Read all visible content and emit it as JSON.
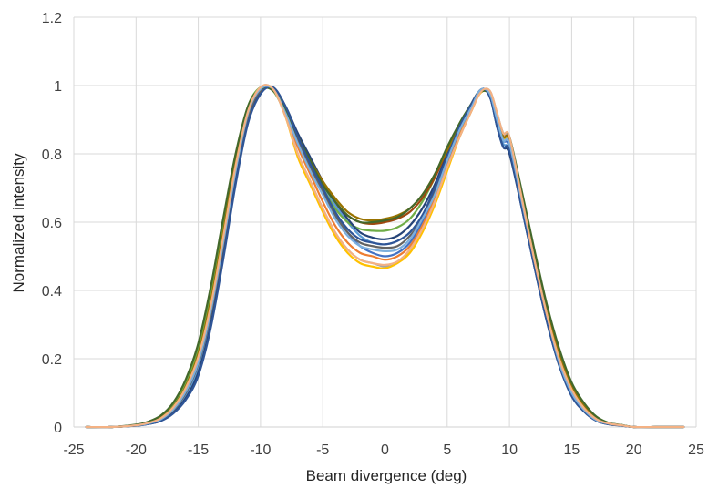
{
  "chart_data": {
    "type": "line",
    "title": "",
    "xlabel": "Beam divergence (deg)",
    "ylabel": "Normalized intensity",
    "xlim": [
      -25,
      25
    ],
    "ylim": [
      0,
      1.2
    ],
    "xticks": [
      -25,
      -20,
      -15,
      -10,
      -5,
      0,
      5,
      10,
      15,
      20,
      25
    ],
    "yticks": [
      0,
      0.2,
      0.4,
      0.6,
      0.8,
      1,
      1.2
    ],
    "ytick_labels": [
      "0",
      "0.2",
      "0.4",
      "0.6",
      "0.8",
      "1",
      "1.2"
    ],
    "grid": true,
    "legend": "none",
    "x": [
      -24,
      -22,
      -20,
      -19,
      -18,
      -17,
      -16,
      -15,
      -14,
      -13,
      -12,
      -11,
      -10,
      -9,
      -8,
      -7,
      -6,
      -5,
      -4,
      -3,
      -2,
      -1,
      0,
      1,
      2,
      3,
      4,
      5,
      6,
      7,
      7.5,
      8,
      8.5,
      9,
      9.5,
      10,
      11,
      12,
      13,
      14,
      15,
      16,
      17,
      18,
      19,
      20,
      22,
      24
    ],
    "series": [
      {
        "color": "#4472c4",
        "values": [
          0.0,
          0.0,
          0.005,
          0.01,
          0.02,
          0.045,
          0.09,
          0.17,
          0.32,
          0.52,
          0.74,
          0.91,
          0.98,
          0.99,
          0.93,
          0.84,
          0.77,
          0.7,
          0.63,
          0.57,
          0.53,
          0.51,
          0.5,
          0.51,
          0.54,
          0.6,
          0.68,
          0.78,
          0.87,
          0.95,
          0.98,
          0.99,
          0.96,
          0.9,
          0.84,
          0.82,
          0.66,
          0.49,
          0.33,
          0.19,
          0.1,
          0.05,
          0.02,
          0.01,
          0.005,
          0.0,
          0.0,
          0.0
        ]
      },
      {
        "color": "#ed7d31",
        "values": [
          0.0,
          0.0,
          0.005,
          0.012,
          0.025,
          0.055,
          0.11,
          0.19,
          0.34,
          0.54,
          0.76,
          0.92,
          0.99,
          0.99,
          0.92,
          0.82,
          0.74,
          0.66,
          0.59,
          0.54,
          0.51,
          0.5,
          0.49,
          0.5,
          0.53,
          0.59,
          0.67,
          0.77,
          0.86,
          0.94,
          0.98,
          0.99,
          0.97,
          0.9,
          0.85,
          0.83,
          0.66,
          0.48,
          0.32,
          0.19,
          0.1,
          0.05,
          0.02,
          0.01,
          0.005,
          0.0,
          0.0,
          0.0
        ]
      },
      {
        "color": "#a5a5a5",
        "values": [
          0.0,
          0.0,
          0.005,
          0.012,
          0.028,
          0.06,
          0.12,
          0.21,
          0.36,
          0.56,
          0.77,
          0.93,
          0.995,
          0.99,
          0.91,
          0.8,
          0.72,
          0.64,
          0.57,
          0.52,
          0.49,
          0.48,
          0.47,
          0.48,
          0.52,
          0.58,
          0.66,
          0.76,
          0.85,
          0.93,
          0.97,
          0.99,
          0.98,
          0.92,
          0.86,
          0.84,
          0.67,
          0.49,
          0.33,
          0.2,
          0.11,
          0.06,
          0.025,
          0.01,
          0.005,
          0.0,
          0.0,
          0.0
        ]
      },
      {
        "color": "#ffc000",
        "values": [
          0.0,
          0.0,
          0.005,
          0.012,
          0.026,
          0.058,
          0.115,
          0.2,
          0.35,
          0.55,
          0.76,
          0.92,
          0.99,
          0.99,
          0.91,
          0.79,
          0.71,
          0.63,
          0.56,
          0.51,
          0.48,
          0.47,
          0.465,
          0.48,
          0.51,
          0.57,
          0.65,
          0.75,
          0.85,
          0.93,
          0.97,
          0.985,
          0.97,
          0.91,
          0.85,
          0.83,
          0.66,
          0.49,
          0.33,
          0.2,
          0.11,
          0.055,
          0.022,
          0.01,
          0.005,
          0.0,
          0.0,
          0.0
        ]
      },
      {
        "color": "#5b9bd5",
        "values": [
          0.0,
          0.0,
          0.004,
          0.01,
          0.02,
          0.048,
          0.095,
          0.175,
          0.32,
          0.52,
          0.74,
          0.91,
          0.985,
          0.99,
          0.93,
          0.84,
          0.77,
          0.71,
          0.65,
          0.6,
          0.56,
          0.54,
          0.535,
          0.545,
          0.57,
          0.62,
          0.69,
          0.78,
          0.87,
          0.95,
          0.98,
          0.99,
          0.96,
          0.89,
          0.83,
          0.81,
          0.65,
          0.48,
          0.32,
          0.19,
          0.1,
          0.05,
          0.02,
          0.01,
          0.004,
          0.0,
          0.0,
          0.0
        ]
      },
      {
        "color": "#70ad47",
        "values": [
          0.0,
          0.0,
          0.006,
          0.014,
          0.03,
          0.065,
          0.13,
          0.23,
          0.39,
          0.59,
          0.79,
          0.94,
          0.995,
          0.985,
          0.92,
          0.84,
          0.77,
          0.7,
          0.64,
          0.6,
          0.58,
          0.575,
          0.575,
          0.585,
          0.61,
          0.66,
          0.73,
          0.81,
          0.89,
          0.95,
          0.98,
          0.985,
          0.97,
          0.91,
          0.85,
          0.84,
          0.68,
          0.51,
          0.35,
          0.22,
          0.12,
          0.065,
          0.03,
          0.012,
          0.006,
          0.0,
          0.0,
          0.0
        ]
      },
      {
        "color": "#264478",
        "values": [
          0.0,
          0.0,
          0.004,
          0.009,
          0.018,
          0.042,
          0.085,
          0.16,
          0.3,
          0.5,
          0.72,
          0.9,
          0.98,
          0.995,
          0.94,
          0.86,
          0.79,
          0.72,
          0.66,
          0.61,
          0.57,
          0.555,
          0.55,
          0.56,
          0.59,
          0.64,
          0.71,
          0.8,
          0.88,
          0.95,
          0.98,
          0.99,
          0.96,
          0.88,
          0.82,
          0.8,
          0.64,
          0.47,
          0.31,
          0.18,
          0.095,
          0.045,
          0.018,
          0.008,
          0.004,
          0.0,
          0.0,
          0.0
        ]
      },
      {
        "color": "#9e480e",
        "values": [
          0.0,
          0.0,
          0.005,
          0.012,
          0.025,
          0.055,
          0.11,
          0.2,
          0.35,
          0.55,
          0.76,
          0.92,
          0.99,
          0.99,
          0.93,
          0.85,
          0.78,
          0.72,
          0.66,
          0.62,
          0.6,
          0.595,
          0.6,
          0.61,
          0.63,
          0.67,
          0.73,
          0.81,
          0.88,
          0.95,
          0.98,
          0.99,
          0.97,
          0.9,
          0.85,
          0.84,
          0.67,
          0.5,
          0.34,
          0.21,
          0.115,
          0.06,
          0.025,
          0.01,
          0.005,
          0.0,
          0.0,
          0.0
        ]
      },
      {
        "color": "#636363",
        "values": [
          0.0,
          0.0,
          0.005,
          0.011,
          0.022,
          0.05,
          0.1,
          0.185,
          0.33,
          0.53,
          0.75,
          0.91,
          0.985,
          0.99,
          0.93,
          0.84,
          0.76,
          0.69,
          0.62,
          0.57,
          0.54,
          0.53,
          0.525,
          0.53,
          0.56,
          0.61,
          0.69,
          0.78,
          0.87,
          0.94,
          0.98,
          0.99,
          0.97,
          0.9,
          0.84,
          0.83,
          0.66,
          0.49,
          0.33,
          0.19,
          0.1,
          0.05,
          0.02,
          0.01,
          0.005,
          0.0,
          0.0,
          0.0
        ]
      },
      {
        "color": "#997300",
        "values": [
          0.0,
          0.0,
          0.005,
          0.013,
          0.028,
          0.06,
          0.12,
          0.215,
          0.37,
          0.57,
          0.78,
          0.93,
          0.99,
          0.99,
          0.93,
          0.85,
          0.78,
          0.72,
          0.67,
          0.63,
          0.61,
          0.605,
          0.61,
          0.62,
          0.64,
          0.68,
          0.74,
          0.81,
          0.88,
          0.95,
          0.98,
          0.99,
          0.97,
          0.9,
          0.85,
          0.84,
          0.68,
          0.51,
          0.35,
          0.21,
          0.12,
          0.06,
          0.025,
          0.01,
          0.005,
          0.0,
          0.0,
          0.0
        ]
      },
      {
        "color": "#43682b",
        "values": [
          0.0,
          0.0,
          0.007,
          0.016,
          0.034,
          0.072,
          0.14,
          0.245,
          0.41,
          0.61,
          0.8,
          0.94,
          0.99,
          0.985,
          0.93,
          0.85,
          0.78,
          0.71,
          0.66,
          0.62,
          0.6,
          0.6,
          0.605,
          0.615,
          0.64,
          0.68,
          0.74,
          0.82,
          0.89,
          0.95,
          0.975,
          0.985,
          0.97,
          0.91,
          0.86,
          0.85,
          0.69,
          0.52,
          0.36,
          0.23,
          0.13,
          0.07,
          0.03,
          0.012,
          0.006,
          0.0,
          0.0,
          0.0
        ]
      },
      {
        "color": "#2f5597",
        "values": [
          0.0,
          0.0,
          0.004,
          0.009,
          0.018,
          0.04,
          0.08,
          0.15,
          0.29,
          0.49,
          0.71,
          0.89,
          0.975,
          0.995,
          0.94,
          0.85,
          0.77,
          0.7,
          0.63,
          0.58,
          0.55,
          0.54,
          0.535,
          0.545,
          0.57,
          0.62,
          0.7,
          0.79,
          0.88,
          0.95,
          0.98,
          0.99,
          0.96,
          0.88,
          0.82,
          0.81,
          0.64,
          0.47,
          0.31,
          0.18,
          0.09,
          0.045,
          0.018,
          0.008,
          0.004,
          0.0,
          0.0,
          0.0
        ]
      },
      {
        "color": "#7cafdd",
        "values": [
          0.0,
          0.0,
          0.005,
          0.011,
          0.023,
          0.052,
          0.105,
          0.19,
          0.34,
          0.54,
          0.75,
          0.92,
          0.99,
          0.99,
          0.92,
          0.83,
          0.75,
          0.68,
          0.61,
          0.56,
          0.53,
          0.52,
          0.515,
          0.52,
          0.55,
          0.61,
          0.68,
          0.78,
          0.87,
          0.94,
          0.98,
          0.99,
          0.97,
          0.9,
          0.84,
          0.83,
          0.66,
          0.49,
          0.33,
          0.19,
          0.1,
          0.05,
          0.02,
          0.01,
          0.005,
          0.0,
          0.0,
          0.0
        ]
      },
      {
        "color": "#f4b183",
        "values": [
          0.0,
          0.0,
          0.005,
          0.012,
          0.026,
          0.058,
          0.115,
          0.205,
          0.355,
          0.555,
          0.765,
          0.925,
          0.995,
          0.99,
          0.91,
          0.8,
          0.72,
          0.64,
          0.57,
          0.52,
          0.49,
          0.48,
          0.475,
          0.485,
          0.52,
          0.58,
          0.66,
          0.76,
          0.85,
          0.93,
          0.97,
          0.99,
          0.98,
          0.92,
          0.86,
          0.85,
          0.67,
          0.49,
          0.33,
          0.2,
          0.11,
          0.055,
          0.023,
          0.01,
          0.005,
          0.0,
          0.0,
          0.0
        ]
      }
    ]
  }
}
